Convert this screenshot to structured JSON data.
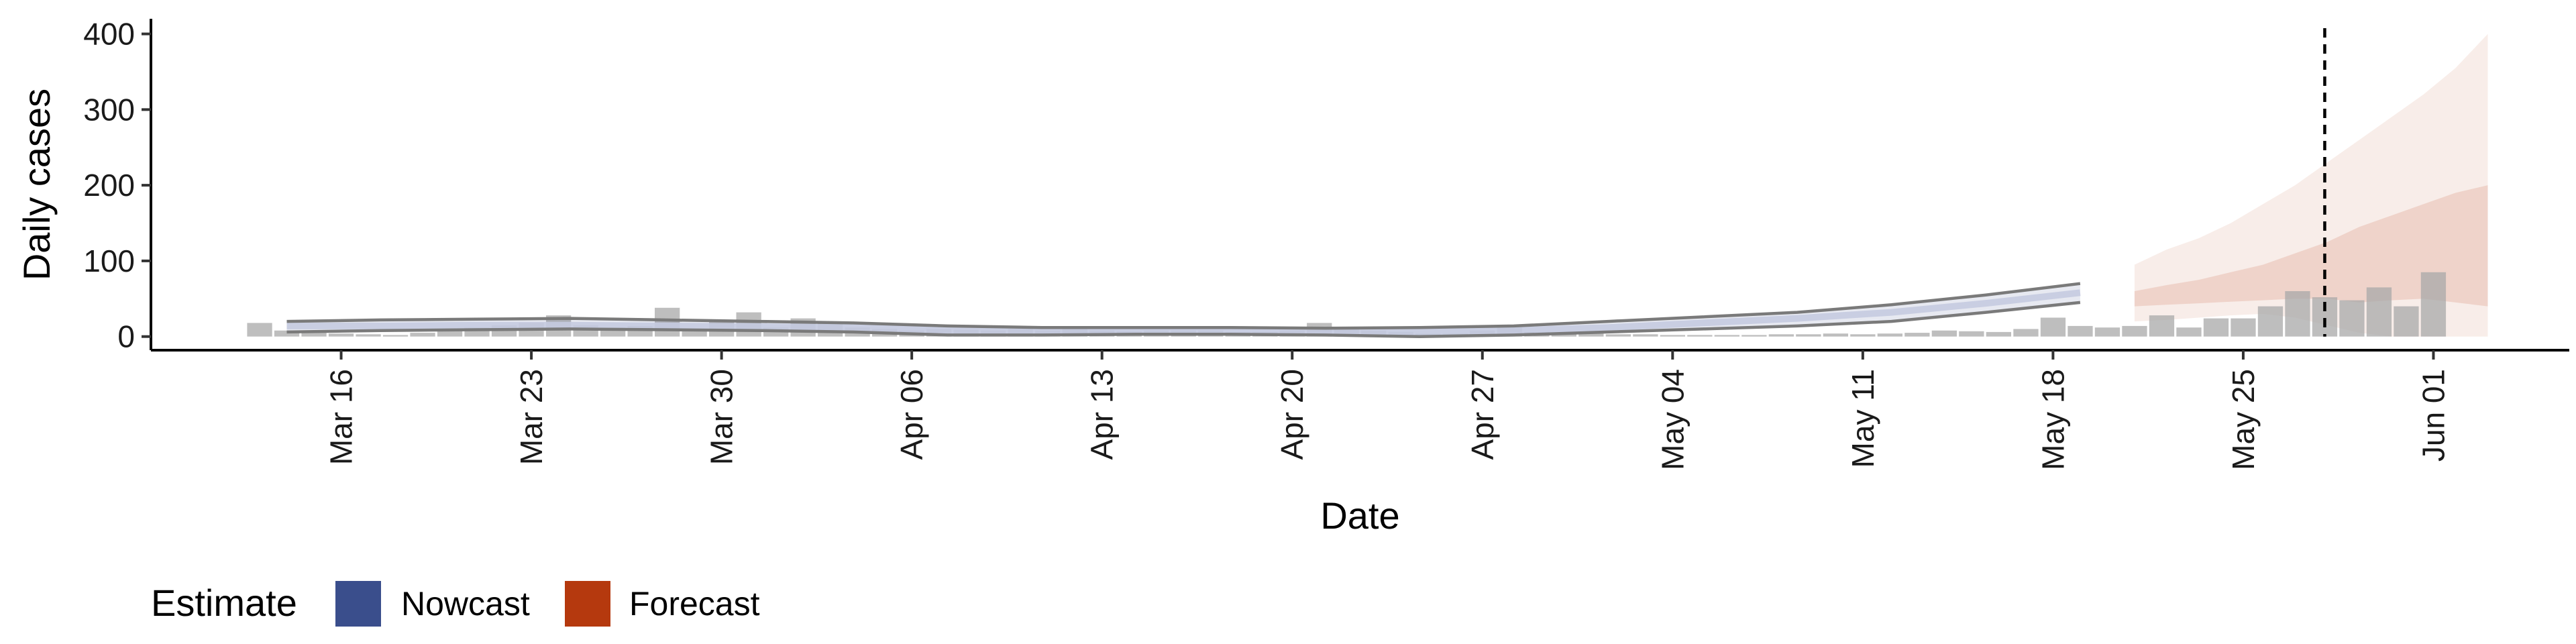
{
  "chart_data": {
    "type": "bar",
    "xlabel": "Date",
    "ylabel": "Daily cases",
    "ylim": [
      -18,
      420
    ],
    "yticks": [
      0,
      100,
      200,
      300,
      400
    ],
    "xlim": [
      "2020-03-09",
      "2020-06-06"
    ],
    "xticks": [
      {
        "date": "2020-03-16",
        "label": "Mar 16"
      },
      {
        "date": "2020-03-23",
        "label": "Mar 23"
      },
      {
        "date": "2020-03-30",
        "label": "Mar 30"
      },
      {
        "date": "2020-04-06",
        "label": "Apr 06"
      },
      {
        "date": "2020-04-13",
        "label": "Apr 13"
      },
      {
        "date": "2020-04-20",
        "label": "Apr 20"
      },
      {
        "date": "2020-04-27",
        "label": "Apr 27"
      },
      {
        "date": "2020-05-04",
        "label": "May 04"
      },
      {
        "date": "2020-05-11",
        "label": "May 11"
      },
      {
        "date": "2020-05-18",
        "label": "May 18"
      },
      {
        "date": "2020-05-25",
        "label": "May 25"
      },
      {
        "date": "2020-06-01",
        "label": "Jun 01"
      }
    ],
    "grid": false,
    "legend_position": "bottom-left",
    "legend_title": "Estimate",
    "bars": {
      "start_date": "2020-03-13",
      "values": [
        18,
        8,
        6,
        4,
        3,
        2,
        5,
        8,
        12,
        15,
        18,
        28,
        15,
        12,
        14,
        38,
        10,
        20,
        32,
        12,
        24,
        20,
        12,
        10,
        8,
        10,
        9,
        8,
        10,
        8,
        10,
        8,
        7,
        8,
        8,
        8,
        6,
        6,
        8,
        18,
        10,
        8,
        6,
        4,
        4,
        8,
        12,
        6,
        5,
        4,
        3,
        3,
        2,
        2,
        2,
        2,
        3,
        3,
        4,
        3,
        4,
        5,
        8,
        7,
        6,
        10,
        25,
        14,
        12,
        14,
        28,
        12,
        24,
        24,
        40,
        60,
        52,
        48,
        65,
        40,
        85
      ]
    },
    "report_date": "2020-05-28",
    "series": [
      {
        "name": "Nowcast",
        "color": "#3A4E8C",
        "start_date": "2020-03-14",
        "end_date": "2020-05-19",
        "upper": [
          20,
          22,
          23,
          24,
          22,
          20,
          18,
          14,
          12,
          12,
          12,
          11,
          12,
          14,
          20,
          26,
          32,
          42,
          55,
          70
        ],
        "median": [
          14,
          14,
          15,
          15,
          14,
          13,
          12,
          8,
          7,
          7,
          7,
          6,
          6,
          8,
          12,
          18,
          24,
          32,
          44,
          58
        ],
        "lower": [
          6,
          8,
          9,
          10,
          9,
          8,
          6,
          2,
          2,
          3,
          3,
          2,
          0,
          2,
          6,
          10,
          14,
          20,
          32,
          45
        ]
      },
      {
        "name": "Forecast",
        "color": "#B5390E",
        "start_date": "2020-05-21",
        "end_date": "2020-06-03",
        "outer_upper": [
          95,
          115,
          130,
          150,
          175,
          200,
          230,
          260,
          290,
          320,
          355,
          400
        ],
        "inner_upper": [
          60,
          68,
          75,
          85,
          95,
          110,
          125,
          145,
          160,
          175,
          190,
          200
        ],
        "inner_lower": [
          40,
          42,
          44,
          46,
          48,
          50,
          50,
          45,
          48,
          50,
          45,
          40
        ],
        "outer_lower": [
          20,
          22,
          25,
          28,
          30,
          25,
          15,
          5,
          0,
          0,
          0,
          0
        ]
      }
    ]
  }
}
